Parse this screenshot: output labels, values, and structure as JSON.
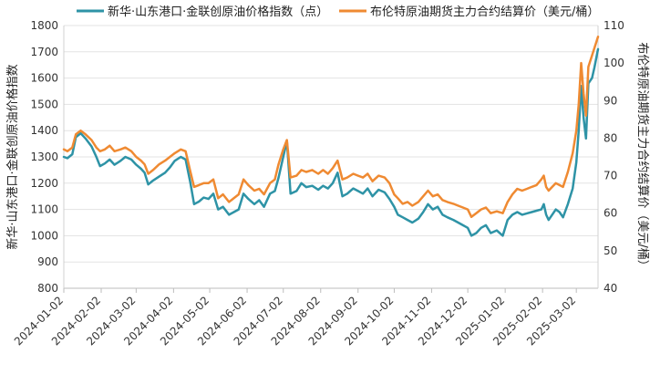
{
  "chart_data": {
    "type": "line",
    "legend_placement": "top",
    "grid": "horizontal",
    "x_ticks": [
      "2024-01-02",
      "2024-02-02",
      "2024-03-02",
      "2024-04-02",
      "2024-05-02",
      "2024-06-02",
      "2024-07-02",
      "2024-08-02",
      "2024-09-02",
      "2024-10-02",
      "2024-11-02",
      "2024-12-02",
      "2025-01-02",
      "2025-02-02",
      "2025-03-02"
    ],
    "x_range": [
      "2024-01-02",
      "2025-03-20"
    ],
    "y_left": {
      "label": "新华·山东港口·金联创原油价格指数",
      "range": [
        800,
        1800
      ],
      "ticks": [
        800,
        900,
        1000,
        1100,
        1200,
        1300,
        1400,
        1500,
        1600,
        1700,
        1800
      ]
    },
    "y_right": {
      "label": "布伦特原油期货主力合约结算价（美元/桶）",
      "range": [
        40,
        110
      ],
      "ticks": [
        40,
        50,
        60,
        70,
        80,
        90,
        100,
        110
      ]
    },
    "series": [
      {
        "name": "新华·山东港口·金联创原油价格指数（点）",
        "color": "#2e93a6",
        "axis": "left",
        "points": [
          [
            "2024-01-02",
            1300
          ],
          [
            "2024-01-05",
            1295
          ],
          [
            "2024-01-09",
            1310
          ],
          [
            "2024-01-12",
            1375
          ],
          [
            "2024-01-16",
            1390
          ],
          [
            "2024-01-20",
            1370
          ],
          [
            "2024-01-25",
            1340
          ],
          [
            "2024-01-29",
            1300
          ],
          [
            "2024-02-01",
            1265
          ],
          [
            "2024-02-05",
            1275
          ],
          [
            "2024-02-09",
            1290
          ],
          [
            "2024-02-13",
            1270
          ],
          [
            "2024-02-18",
            1285
          ],
          [
            "2024-02-22",
            1300
          ],
          [
            "2024-02-27",
            1290
          ],
          [
            "2024-03-02",
            1270
          ],
          [
            "2024-03-06",
            1255
          ],
          [
            "2024-03-09",
            1240
          ],
          [
            "2024-03-12",
            1195
          ],
          [
            "2024-03-16",
            1210
          ],
          [
            "2024-03-21",
            1225
          ],
          [
            "2024-03-26",
            1240
          ],
          [
            "2024-03-30",
            1260
          ],
          [
            "2024-04-03",
            1285
          ],
          [
            "2024-04-08",
            1300
          ],
          [
            "2024-04-12",
            1290
          ],
          [
            "2024-04-16",
            1200
          ],
          [
            "2024-04-19",
            1120
          ],
          [
            "2024-04-23",
            1130
          ],
          [
            "2024-04-27",
            1145
          ],
          [
            "2024-05-01",
            1140
          ],
          [
            "2024-05-05",
            1160
          ],
          [
            "2024-05-09",
            1100
          ],
          [
            "2024-05-13",
            1110
          ],
          [
            "2024-05-18",
            1080
          ],
          [
            "2024-05-22",
            1090
          ],
          [
            "2024-05-26",
            1100
          ],
          [
            "2024-05-30",
            1160
          ],
          [
            "2024-06-03",
            1140
          ],
          [
            "2024-06-08",
            1120
          ],
          [
            "2024-06-12",
            1135
          ],
          [
            "2024-06-16",
            1110
          ],
          [
            "2024-06-21",
            1160
          ],
          [
            "2024-06-25",
            1170
          ],
          [
            "2024-06-28",
            1220
          ],
          [
            "2024-07-02",
            1300
          ],
          [
            "2024-07-05",
            1360
          ],
          [
            "2024-07-08",
            1160
          ],
          [
            "2024-07-13",
            1170
          ],
          [
            "2024-07-17",
            1200
          ],
          [
            "2024-07-21",
            1185
          ],
          [
            "2024-07-26",
            1190
          ],
          [
            "2024-07-31",
            1175
          ],
          [
            "2024-08-04",
            1190
          ],
          [
            "2024-08-08",
            1180
          ],
          [
            "2024-08-12",
            1200
          ],
          [
            "2024-08-16",
            1240
          ],
          [
            "2024-08-20",
            1150
          ],
          [
            "2024-08-24",
            1160
          ],
          [
            "2024-08-29",
            1180
          ],
          [
            "2024-09-02",
            1170
          ],
          [
            "2024-09-06",
            1160
          ],
          [
            "2024-09-10",
            1180
          ],
          [
            "2024-09-14",
            1150
          ],
          [
            "2024-09-19",
            1175
          ],
          [
            "2024-09-24",
            1165
          ],
          [
            "2024-09-28",
            1140
          ],
          [
            "2024-10-02",
            1110
          ],
          [
            "2024-10-05",
            1080
          ],
          [
            "2024-10-09",
            1070
          ],
          [
            "2024-10-13",
            1060
          ],
          [
            "2024-10-17",
            1050
          ],
          [
            "2024-10-22",
            1065
          ],
          [
            "2024-10-26",
            1090
          ],
          [
            "2024-10-30",
            1120
          ],
          [
            "2024-11-03",
            1100
          ],
          [
            "2024-11-07",
            1110
          ],
          [
            "2024-11-11",
            1080
          ],
          [
            "2024-11-15",
            1070
          ],
          [
            "2024-11-20",
            1060
          ],
          [
            "2024-11-24",
            1050
          ],
          [
            "2024-11-28",
            1040
          ],
          [
            "2024-12-02",
            1030
          ],
          [
            "2024-12-05",
            1000
          ],
          [
            "2024-12-09",
            1010
          ],
          [
            "2024-12-13",
            1030
          ],
          [
            "2024-12-17",
            1040
          ],
          [
            "2024-12-21",
            1010
          ],
          [
            "2024-12-26",
            1020
          ],
          [
            "2024-12-31",
            1000
          ],
          [
            "2025-01-04",
            1060
          ],
          [
            "2025-01-08",
            1080
          ],
          [
            "2025-01-12",
            1090
          ],
          [
            "2025-01-16",
            1080
          ],
          [
            "2025-01-20",
            1085
          ],
          [
            "2025-01-24",
            1090
          ],
          [
            "2025-01-28",
            1095
          ],
          [
            "2025-02-01",
            1100
          ],
          [
            "2025-02-03",
            1120
          ],
          [
            "2025-02-05",
            1080
          ],
          [
            "2025-02-07",
            1060
          ],
          [
            "2025-02-10",
            1080
          ],
          [
            "2025-02-13",
            1100
          ],
          [
            "2025-02-16",
            1090
          ],
          [
            "2025-02-19",
            1070
          ],
          [
            "2025-02-23",
            1120
          ],
          [
            "2025-02-27",
            1180
          ],
          [
            "2025-03-02",
            1280
          ],
          [
            "2025-03-04",
            1400
          ],
          [
            "2025-03-06",
            1570
          ],
          [
            "2025-03-08",
            1450
          ],
          [
            "2025-03-10",
            1370
          ],
          [
            "2025-03-12",
            1580
          ],
          [
            "2025-03-15",
            1600
          ],
          [
            "2025-03-17",
            1640
          ],
          [
            "2025-03-20",
            1710
          ]
        ]
      },
      {
        "name": "布伦特原油期货主力合约结算价（美元/桶）",
        "color": "#ef8a32",
        "axis": "right",
        "points": [
          [
            "2024-01-02",
            77
          ],
          [
            "2024-01-05",
            76.5
          ],
          [
            "2024-01-09",
            77.5
          ],
          [
            "2024-01-12",
            81
          ],
          [
            "2024-01-16",
            82
          ],
          [
            "2024-01-20",
            81
          ],
          [
            "2024-01-25",
            79.5
          ],
          [
            "2024-01-29",
            77.5
          ],
          [
            "2024-02-01",
            76.5
          ],
          [
            "2024-02-05",
            77
          ],
          [
            "2024-02-09",
            78
          ],
          [
            "2024-02-13",
            76.5
          ],
          [
            "2024-02-18",
            77
          ],
          [
            "2024-02-22",
            77.5
          ],
          [
            "2024-02-27",
            76.5
          ],
          [
            "2024-03-02",
            75
          ],
          [
            "2024-03-06",
            74
          ],
          [
            "2024-03-09",
            73
          ],
          [
            "2024-03-12",
            70.5
          ],
          [
            "2024-03-16",
            71.5
          ],
          [
            "2024-03-21",
            73
          ],
          [
            "2024-03-26",
            74
          ],
          [
            "2024-03-30",
            75
          ],
          [
            "2024-04-03",
            76
          ],
          [
            "2024-04-08",
            77
          ],
          [
            "2024-04-12",
            76.5
          ],
          [
            "2024-04-16",
            71
          ],
          [
            "2024-04-19",
            67
          ],
          [
            "2024-04-23",
            67.5
          ],
          [
            "2024-04-27",
            68
          ],
          [
            "2024-05-01",
            68
          ],
          [
            "2024-05-05",
            69
          ],
          [
            "2024-05-09",
            64
          ],
          [
            "2024-05-13",
            65
          ],
          [
            "2024-05-18",
            63
          ],
          [
            "2024-05-22",
            64
          ],
          [
            "2024-05-26",
            65
          ],
          [
            "2024-05-30",
            69
          ],
          [
            "2024-06-03",
            67.5
          ],
          [
            "2024-06-08",
            66
          ],
          [
            "2024-06-12",
            66.5
          ],
          [
            "2024-06-16",
            65
          ],
          [
            "2024-06-21",
            68
          ],
          [
            "2024-06-25",
            69
          ],
          [
            "2024-06-28",
            73
          ],
          [
            "2024-07-02",
            77
          ],
          [
            "2024-07-05",
            79.5
          ],
          [
            "2024-07-08",
            69.5
          ],
          [
            "2024-07-13",
            70
          ],
          [
            "2024-07-17",
            71.5
          ],
          [
            "2024-07-21",
            71
          ],
          [
            "2024-07-26",
            71.5
          ],
          [
            "2024-07-31",
            70.5
          ],
          [
            "2024-08-04",
            71.5
          ],
          [
            "2024-08-08",
            70.5
          ],
          [
            "2024-08-12",
            72
          ],
          [
            "2024-08-16",
            74
          ],
          [
            "2024-08-20",
            69
          ],
          [
            "2024-08-24",
            69.5
          ],
          [
            "2024-08-29",
            70.5
          ],
          [
            "2024-09-02",
            70
          ],
          [
            "2024-09-06",
            69.5
          ],
          [
            "2024-09-10",
            70.5
          ],
          [
            "2024-09-14",
            68.5
          ],
          [
            "2024-09-19",
            70
          ],
          [
            "2024-09-24",
            69.5
          ],
          [
            "2024-09-28",
            68
          ],
          [
            "2024-10-02",
            65
          ],
          [
            "2024-10-05",
            64
          ],
          [
            "2024-10-09",
            62.5
          ],
          [
            "2024-10-13",
            63
          ],
          [
            "2024-10-17",
            62
          ],
          [
            "2024-10-22",
            63
          ],
          [
            "2024-10-26",
            64.5
          ],
          [
            "2024-10-30",
            66
          ],
          [
            "2024-11-03",
            64.5
          ],
          [
            "2024-11-07",
            65
          ],
          [
            "2024-11-11",
            63.5
          ],
          [
            "2024-11-15",
            63
          ],
          [
            "2024-11-20",
            62.5
          ],
          [
            "2024-11-24",
            62
          ],
          [
            "2024-11-28",
            61.5
          ],
          [
            "2024-12-02",
            61
          ],
          [
            "2024-12-05",
            59
          ],
          [
            "2024-12-09",
            60
          ],
          [
            "2024-12-13",
            61
          ],
          [
            "2024-12-17",
            61.5
          ],
          [
            "2024-12-21",
            60
          ],
          [
            "2024-12-26",
            60.5
          ],
          [
            "2024-12-31",
            60
          ],
          [
            "2025-01-04",
            63
          ],
          [
            "2025-01-08",
            65
          ],
          [
            "2025-01-12",
            66.5
          ],
          [
            "2025-01-16",
            66
          ],
          [
            "2025-01-20",
            66.5
          ],
          [
            "2025-01-24",
            67
          ],
          [
            "2025-01-28",
            67.5
          ],
          [
            "2025-02-01",
            69
          ],
          [
            "2025-02-03",
            70
          ],
          [
            "2025-02-05",
            67
          ],
          [
            "2025-02-07",
            66
          ],
          [
            "2025-02-10",
            67
          ],
          [
            "2025-02-13",
            68
          ],
          [
            "2025-02-16",
            67.5
          ],
          [
            "2025-02-19",
            67
          ],
          [
            "2025-02-23",
            71
          ],
          [
            "2025-02-27",
            76
          ],
          [
            "2025-03-02",
            82
          ],
          [
            "2025-03-04",
            89
          ],
          [
            "2025-03-06",
            100
          ],
          [
            "2025-03-08",
            92
          ],
          [
            "2025-03-10",
            86
          ],
          [
            "2025-03-12",
            99
          ],
          [
            "2025-03-15",
            102
          ],
          [
            "2025-03-17",
            104
          ],
          [
            "2025-03-20",
            107
          ]
        ]
      }
    ]
  }
}
